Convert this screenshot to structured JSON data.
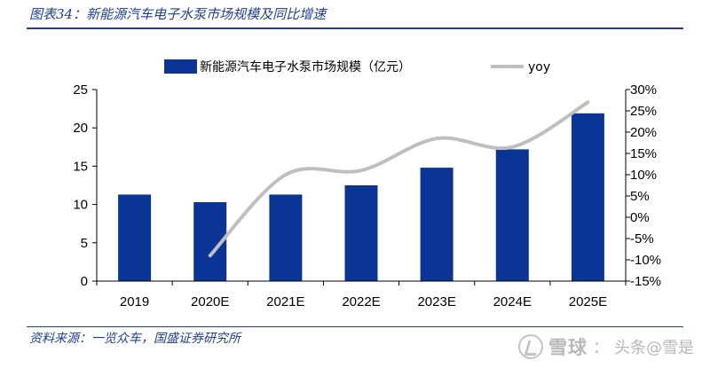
{
  "figure": {
    "title": "图表34：新能源汽车电子水泵市场规模及同比增速",
    "source": "资料来源：一览众车，国盛证券研究所"
  },
  "watermark": {
    "site": "雪球",
    "separator": "：",
    "account": "头条@雪是"
  },
  "chart_data": {
    "type": "bar",
    "categories": [
      "2019",
      "2020E",
      "2021E",
      "2022E",
      "2023E",
      "2024E",
      "2025E"
    ],
    "series": [
      {
        "name": "新能源汽车电子水泵市场规模（亿元）",
        "type": "bar",
        "axis": "left",
        "values": [
          11.3,
          10.3,
          11.3,
          12.5,
          14.8,
          17.2,
          21.9
        ]
      },
      {
        "name": "yoy",
        "type": "line",
        "axis": "right",
        "smooth": true,
        "values": [
          null,
          -9.0,
          10.0,
          11.0,
          18.5,
          16.5,
          27.0
        ]
      }
    ],
    "y_left": {
      "min": 0,
      "max": 25,
      "ticks": [
        "0",
        "5",
        "10",
        "15",
        "20",
        "25"
      ]
    },
    "y_right": {
      "min": -15,
      "max": 30,
      "ticks": [
        "-15%",
        "-10%",
        "-5%",
        "0%",
        "5%",
        "10%",
        "15%",
        "20%",
        "25%",
        "30%"
      ]
    },
    "xlabel": "",
    "ylabel": "",
    "grid": false,
    "legend": "top",
    "colors": {
      "bar": "#0a3597",
      "line": "#bfbfbf",
      "accent": "#1f3f8f"
    }
  }
}
